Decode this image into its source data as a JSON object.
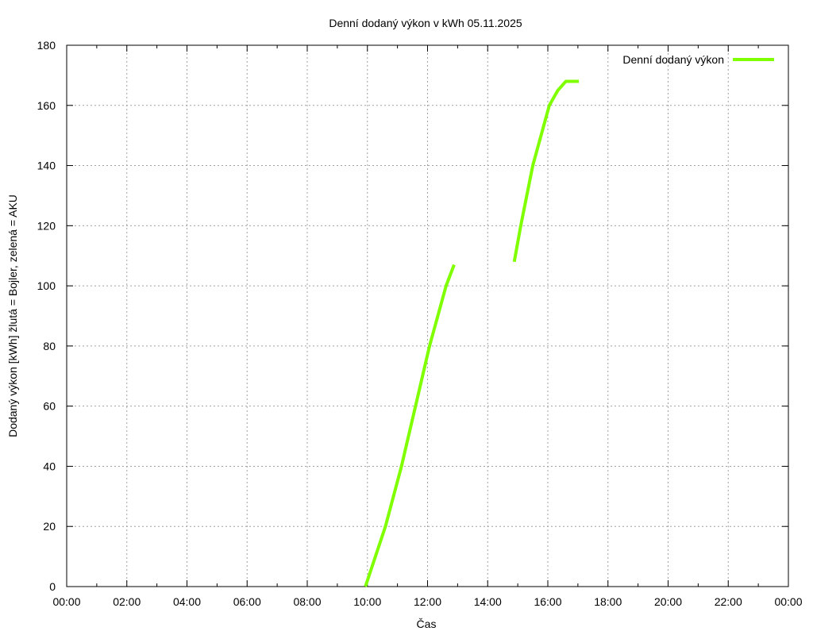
{
  "chart_data": {
    "type": "line",
    "title": "Denní dodaný výkon v kWh 05.11.2025",
    "xlabel": "Čas",
    "ylabel": "Dodaný výkon [kWh]  žlutá = Bojler, zelená = AKU",
    "xlim": [
      "00:00",
      "24:00"
    ],
    "ylim": [
      0,
      180
    ],
    "x_ticks": [
      "00:00",
      "02:00",
      "04:00",
      "06:00",
      "08:00",
      "10:00",
      "12:00",
      "14:00",
      "16:00",
      "18:00",
      "20:00",
      "22:00",
      "00:00"
    ],
    "y_ticks": [
      0,
      20,
      40,
      60,
      80,
      100,
      120,
      140,
      160,
      180
    ],
    "grid": true,
    "legend_position": "top-right",
    "series": [
      {
        "name": "Denní dodaný výkon",
        "color": "#7fff00",
        "segments": [
          [
            [
              "09:56",
              0
            ],
            [
              "10:36",
              20
            ],
            [
              "11:08",
              40
            ],
            [
              "11:36",
              60
            ],
            [
              "12:04",
              80
            ],
            [
              "12:37",
              100
            ],
            [
              "12:53",
              107
            ]
          ],
          [
            [
              "14:53",
              108
            ],
            [
              "15:06",
              120
            ],
            [
              "15:30",
              140
            ],
            [
              "16:03",
              160
            ],
            [
              "16:20",
              165
            ],
            [
              "16:36",
              168
            ],
            [
              "17:02",
              168
            ]
          ]
        ]
      }
    ]
  }
}
